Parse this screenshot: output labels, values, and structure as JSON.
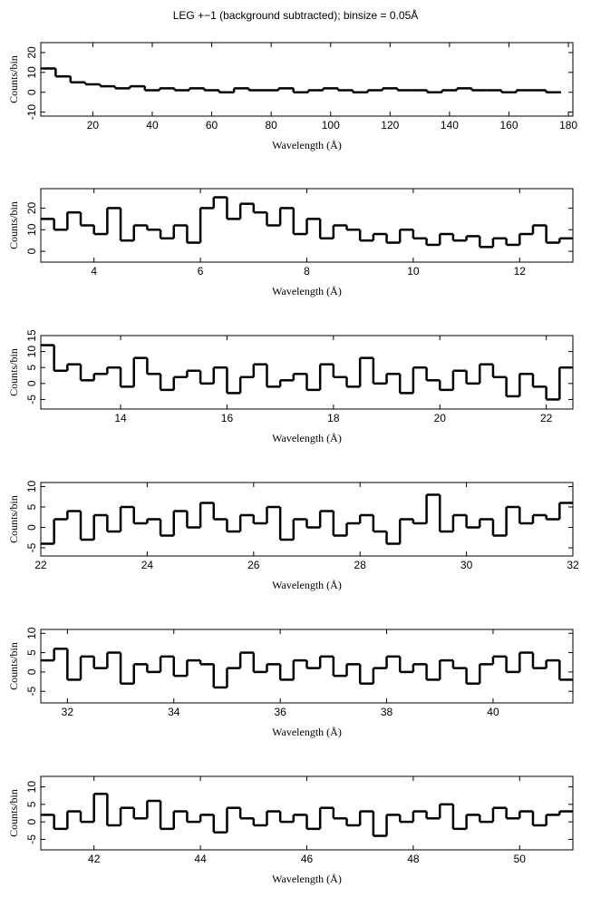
{
  "chart_data": [
    {
      "type": "step",
      "title": "LEG +−1 (background subtracted); binsize = 0.05Å",
      "xlabel": "Wavelength (Å)",
      "ylabel": "Counts/bin",
      "color": "#000000",
      "x": [
        5,
        10,
        15,
        20,
        25,
        30,
        35,
        40,
        45,
        50,
        55,
        60,
        65,
        70,
        75,
        80,
        85,
        90,
        95,
        100,
        105,
        110,
        115,
        120,
        125,
        130,
        135,
        140,
        145,
        150,
        155,
        160,
        165,
        170,
        175
      ],
      "values": [
        12,
        8,
        5,
        4,
        3,
        2,
        3,
        1,
        2,
        1,
        2,
        1,
        0,
        2,
        1,
        1,
        2,
        0,
        1,
        2,
        1,
        0,
        1,
        2,
        1,
        1,
        0,
        1,
        2,
        1,
        1,
        0,
        1,
        1,
        0
      ],
      "xlim": [
        2.5,
        181.5
      ],
      "ylim": [
        -12,
        25
      ],
      "xticks": [
        20,
        40,
        60,
        80,
        100,
        120,
        140,
        160,
        180
      ],
      "yticks": [
        -10,
        0,
        10,
        20
      ]
    },
    {
      "type": "step",
      "xlabel": "Wavelength (Å)",
      "ylabel": "Counts/bin",
      "color": "#000000",
      "x": [
        3.125,
        3.375,
        3.625,
        3.875,
        4.125,
        4.375,
        4.625,
        4.875,
        5.125,
        5.375,
        5.625,
        5.875,
        6.125,
        6.375,
        6.625,
        6.875,
        7.125,
        7.375,
        7.625,
        7.875,
        8.125,
        8.375,
        8.625,
        8.875,
        9.125,
        9.375,
        9.625,
        9.875,
        10.125,
        10.375,
        10.625,
        10.875,
        11.125,
        11.375,
        11.625,
        11.875,
        12.125,
        12.375,
        12.625,
        12.875
      ],
      "values": [
        15,
        10,
        18,
        12,
        8,
        20,
        5,
        12,
        10,
        6,
        12,
        4,
        20,
        25,
        15,
        22,
        18,
        12,
        20,
        8,
        15,
        6,
        12,
        10,
        5,
        8,
        4,
        10,
        6,
        3,
        8,
        5,
        7,
        2,
        6,
        3,
        8,
        12,
        4,
        6
      ],
      "xlim": [
        3,
        13
      ],
      "ylim": [
        -5,
        29
      ],
      "xticks": [
        4,
        6,
        8,
        10,
        12
      ],
      "yticks": [
        0,
        10,
        20
      ]
    },
    {
      "type": "step",
      "xlabel": "Wavelength (Å)",
      "ylabel": "Counts/bin",
      "color": "#000000",
      "x": [
        12.625,
        12.875,
        13.125,
        13.375,
        13.625,
        13.875,
        14.125,
        14.375,
        14.625,
        14.875,
        15.125,
        15.375,
        15.625,
        15.875,
        16.125,
        16.375,
        16.625,
        16.875,
        17.125,
        17.375,
        17.625,
        17.875,
        18.125,
        18.375,
        18.625,
        18.875,
        19.125,
        19.375,
        19.625,
        19.875,
        20.125,
        20.375,
        20.625,
        20.875,
        21.125,
        21.375,
        21.625,
        21.875,
        22.125,
        22.375
      ],
      "values": [
        12,
        4,
        6,
        1,
        3,
        5,
        -1,
        8,
        3,
        -2,
        2,
        4,
        0,
        5,
        -3,
        2,
        6,
        -1,
        1,
        3,
        -2,
        6,
        2,
        -1,
        8,
        0,
        3,
        -3,
        5,
        1,
        -2,
        4,
        0,
        6,
        2,
        -4,
        3,
        -1,
        -5,
        5
      ],
      "xlim": [
        12.5,
        22.5
      ],
      "ylim": [
        -8,
        15
      ],
      "xticks": [
        14,
        16,
        18,
        20,
        22
      ],
      "yticks": [
        -5,
        0,
        5,
        10,
        15
      ]
    },
    {
      "type": "step",
      "xlabel": "Wavelength (Å)",
      "ylabel": "Counts/bin",
      "color": "#000000",
      "x": [
        22.125,
        22.375,
        22.625,
        22.875,
        23.125,
        23.375,
        23.625,
        23.875,
        24.125,
        24.375,
        24.625,
        24.875,
        25.125,
        25.375,
        25.625,
        25.875,
        26.125,
        26.375,
        26.625,
        26.875,
        27.125,
        27.375,
        27.625,
        27.875,
        28.125,
        28.375,
        28.625,
        28.875,
        29.125,
        29.375,
        29.625,
        29.875,
        30.125,
        30.375,
        30.625,
        30.875,
        31.125,
        31.375,
        31.625,
        31.875
      ],
      "values": [
        -4,
        2,
        4,
        -3,
        3,
        -1,
        5,
        1,
        2,
        -2,
        4,
        0,
        6,
        2,
        -1,
        3,
        1,
        5,
        -3,
        2,
        0,
        4,
        -2,
        1,
        3,
        -1,
        -4,
        2,
        1,
        8,
        -1,
        3,
        0,
        2,
        -2,
        5,
        1,
        3,
        2,
        6
      ],
      "xlim": [
        22,
        32
      ],
      "ylim": [
        -7,
        11
      ],
      "xticks": [
        22,
        24,
        26,
        28,
        30,
        32
      ],
      "yticks": [
        -5,
        0,
        5,
        10
      ]
    },
    {
      "type": "step",
      "xlabel": "Wavelength (Å)",
      "ylabel": "Counts/bin",
      "color": "#000000",
      "x": [
        31.625,
        31.875,
        32.125,
        32.375,
        32.625,
        32.875,
        33.125,
        33.375,
        33.625,
        33.875,
        34.125,
        34.375,
        34.625,
        34.875,
        35.125,
        35.375,
        35.625,
        35.875,
        36.125,
        36.375,
        36.625,
        36.875,
        37.125,
        37.375,
        37.625,
        37.875,
        38.125,
        38.375,
        38.625,
        38.875,
        39.125,
        39.375,
        39.625,
        39.875,
        40.125,
        40.375,
        40.625,
        40.875,
        41.125,
        41.375
      ],
      "values": [
        3,
        6,
        -2,
        4,
        1,
        5,
        -3,
        2,
        0,
        4,
        -1,
        3,
        2,
        -4,
        1,
        5,
        0,
        2,
        -2,
        3,
        1,
        4,
        -1,
        2,
        -3,
        1,
        4,
        0,
        2,
        -2,
        3,
        1,
        -3,
        2,
        4,
        0,
        5,
        1,
        3,
        -2
      ],
      "xlim": [
        31.5,
        41.5
      ],
      "ylim": [
        -8,
        11
      ],
      "xticks": [
        32,
        34,
        36,
        38,
        40
      ],
      "yticks": [
        -5,
        0,
        5,
        10
      ]
    },
    {
      "type": "step",
      "xlabel": "Wavelength (Å)",
      "ylabel": "Counts/bin",
      "color": "#000000",
      "x": [
        41.125,
        41.375,
        41.625,
        41.875,
        42.125,
        42.375,
        42.625,
        42.875,
        43.125,
        43.375,
        43.625,
        43.875,
        44.125,
        44.375,
        44.625,
        44.875,
        45.125,
        45.375,
        45.625,
        45.875,
        46.125,
        46.375,
        46.625,
        46.875,
        47.125,
        47.375,
        47.625,
        47.875,
        48.125,
        48.375,
        48.625,
        48.875,
        49.125,
        49.375,
        49.625,
        49.875,
        50.125,
        50.375,
        50.625,
        50.875
      ],
      "values": [
        2,
        -2,
        3,
        0,
        8,
        -1,
        4,
        1,
        6,
        -2,
        3,
        0,
        2,
        -3,
        4,
        1,
        -1,
        3,
        0,
        2,
        -2,
        4,
        1,
        -1,
        3,
        -4,
        2,
        0,
        3,
        1,
        5,
        -2,
        2,
        0,
        4,
        1,
        3,
        -1,
        2,
        3
      ],
      "xlim": [
        41,
        51
      ],
      "ylim": [
        -8,
        13
      ],
      "xticks": [
        42,
        44,
        46,
        48,
        50
      ],
      "yticks": [
        -5,
        0,
        5,
        10
      ]
    }
  ]
}
